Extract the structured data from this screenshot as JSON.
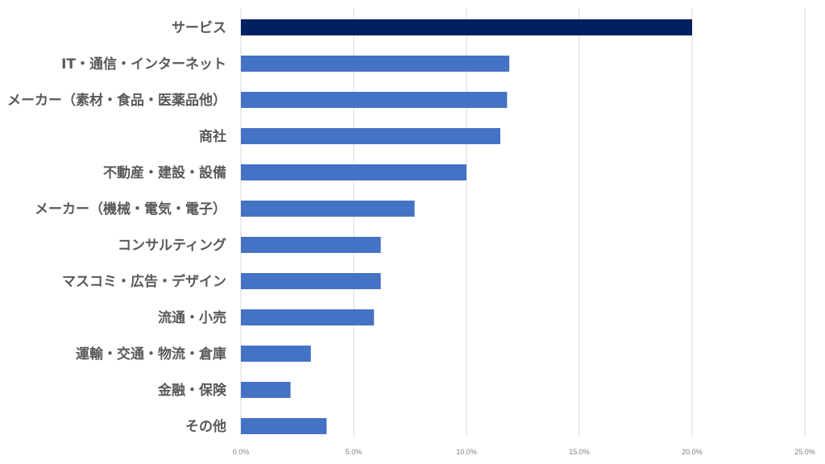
{
  "chart_data": {
    "type": "bar",
    "orientation": "horizontal",
    "title": "",
    "xlabel": "",
    "ylabel": "",
    "categories": [
      "サービス",
      "IT・通信・インターネット",
      "メーカー（素材・食品・医薬品他）",
      "商社",
      "不動産・建設・設備",
      "メーカー（機械・電気・電子）",
      "コンサルティング",
      "マスコミ・広告・デザイン",
      "流通・小売",
      "運輸・交通・物流・倉庫",
      "金融・保険",
      "その他"
    ],
    "values": [
      20.0,
      11.9,
      11.8,
      11.5,
      10.0,
      7.7,
      6.2,
      6.2,
      5.9,
      3.1,
      2.2,
      3.8
    ],
    "xlim": [
      0,
      25
    ],
    "x_ticks": [
      "0.0%",
      "5.0%",
      "10.0%",
      "15.0%",
      "20.0%",
      "25.0%"
    ],
    "grid": true,
    "legend": "none",
    "colors": {
      "highlight": "#002060",
      "bar": "#4472c4",
      "grid": "#d9d9d9",
      "label": "#595959",
      "tick": "#7f7f7f"
    }
  }
}
